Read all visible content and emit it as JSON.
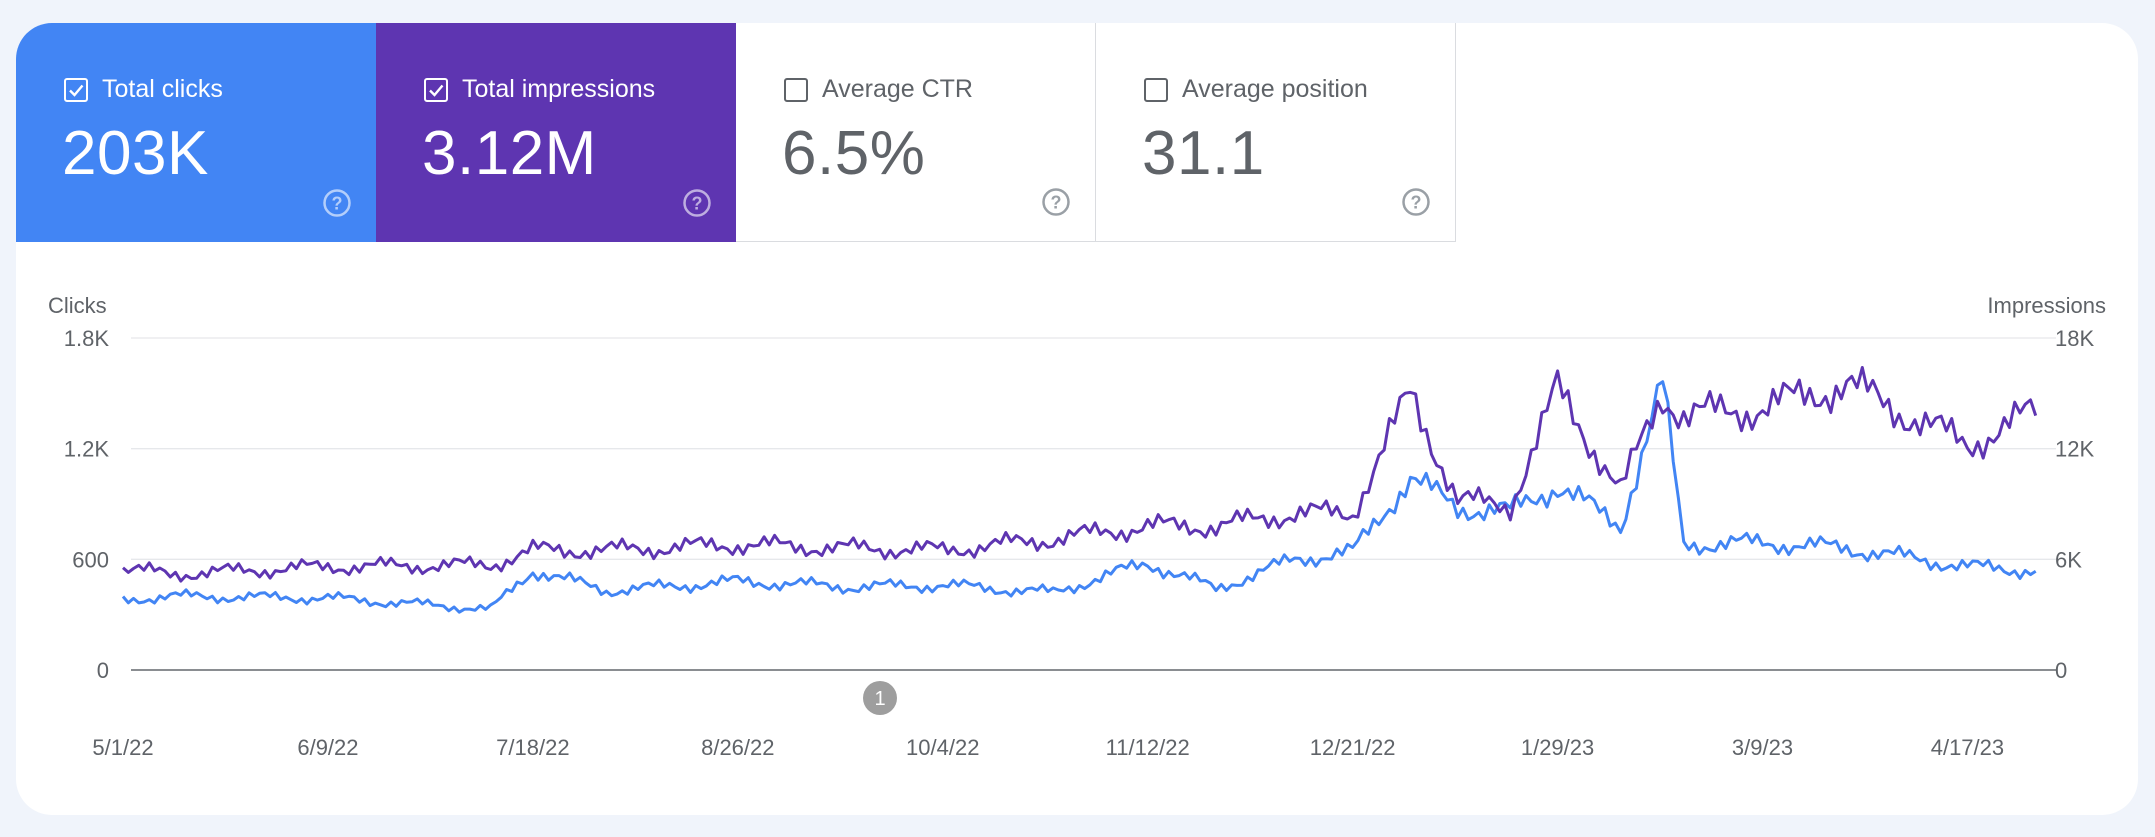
{
  "tiles": [
    {
      "label": "Total clicks",
      "value": "203K",
      "checked": true
    },
    {
      "label": "Total impressions",
      "value": "3.12M",
      "checked": true
    },
    {
      "label": "Average CTR",
      "value": "6.5%",
      "checked": false
    },
    {
      "label": "Average position",
      "value": "31.1",
      "checked": false
    }
  ],
  "colors": {
    "clicks": "#4285f4",
    "impressions": "#5e35b1",
    "muted": "#5f6368"
  },
  "icons": {
    "checkbox_checked": "check-icon",
    "help": "help-circle-icon"
  },
  "annotation": {
    "label": "1",
    "date": "9/17/22"
  },
  "chart_data": {
    "type": "line",
    "ylabel_left": "Clicks",
    "ylabel_right": "Impressions",
    "left_ticks": [
      "1.8K",
      "1.2K",
      "600",
      "0"
    ],
    "right_ticks": [
      "18K",
      "12K",
      "6K",
      "0"
    ],
    "ylim_left": [
      0,
      1800
    ],
    "ylim_right": [
      0,
      18000
    ],
    "x_ticks": [
      "5/1/22",
      "6/9/22",
      "7/18/22",
      "8/26/22",
      "10/4/22",
      "11/12/22",
      "12/21/22",
      "1/29/23",
      "3/9/23",
      "4/17/23"
    ],
    "x_range": [
      "5/1/22",
      "5/1/23"
    ],
    "grid": true,
    "series": [
      {
        "name": "Clicks",
        "axis": "left",
        "color": "#4285f4",
        "x": [
          "5/1/22",
          "5/10/22",
          "6/9/22",
          "7/10/22",
          "7/18/22",
          "8/1/22",
          "8/26/22",
          "9/17/22",
          "10/4/22",
          "10/25/22",
          "11/12/22",
          "11/25/22",
          "12/10/22",
          "12/21/22",
          "1/1/23",
          "1/10/23",
          "1/20/23",
          "1/29/23",
          "2/10/23",
          "2/18/23",
          "2/22/23",
          "3/9/23",
          "3/25/23",
          "4/17/23",
          "4/30/23"
        ],
        "values": [
          380,
          400,
          390,
          330,
          540,
          430,
          480,
          450,
          460,
          420,
          580,
          440,
          600,
          640,
          1040,
          880,
          860,
          1000,
          780,
          1550,
          680,
          690,
          660,
          560,
          540
        ]
      },
      {
        "name": "Impressions",
        "axis": "right",
        "color": "#5e35b1",
        "x": [
          "5/1/22",
          "5/10/22",
          "6/9/22",
          "7/10/22",
          "7/18/22",
          "8/1/22",
          "8/26/22",
          "9/17/22",
          "10/4/22",
          "10/25/22",
          "11/12/22",
          "11/25/22",
          "12/10/22",
          "12/21/22",
          "1/1/23",
          "1/10/23",
          "1/20/23",
          "1/29/23",
          "2/10/23",
          "2/18/23",
          "2/22/23",
          "3/9/23",
          "3/25/23",
          "4/17/23",
          "4/30/23"
        ],
        "values": [
          5500,
          5200,
          5600,
          5700,
          6500,
          6500,
          6800,
          6600,
          6500,
          7100,
          7800,
          7800,
          8500,
          8500,
          15000,
          9200,
          8900,
          15200,
          9700,
          15000,
          13800,
          14200,
          15500,
          12200,
          14000
        ]
      }
    ]
  }
}
